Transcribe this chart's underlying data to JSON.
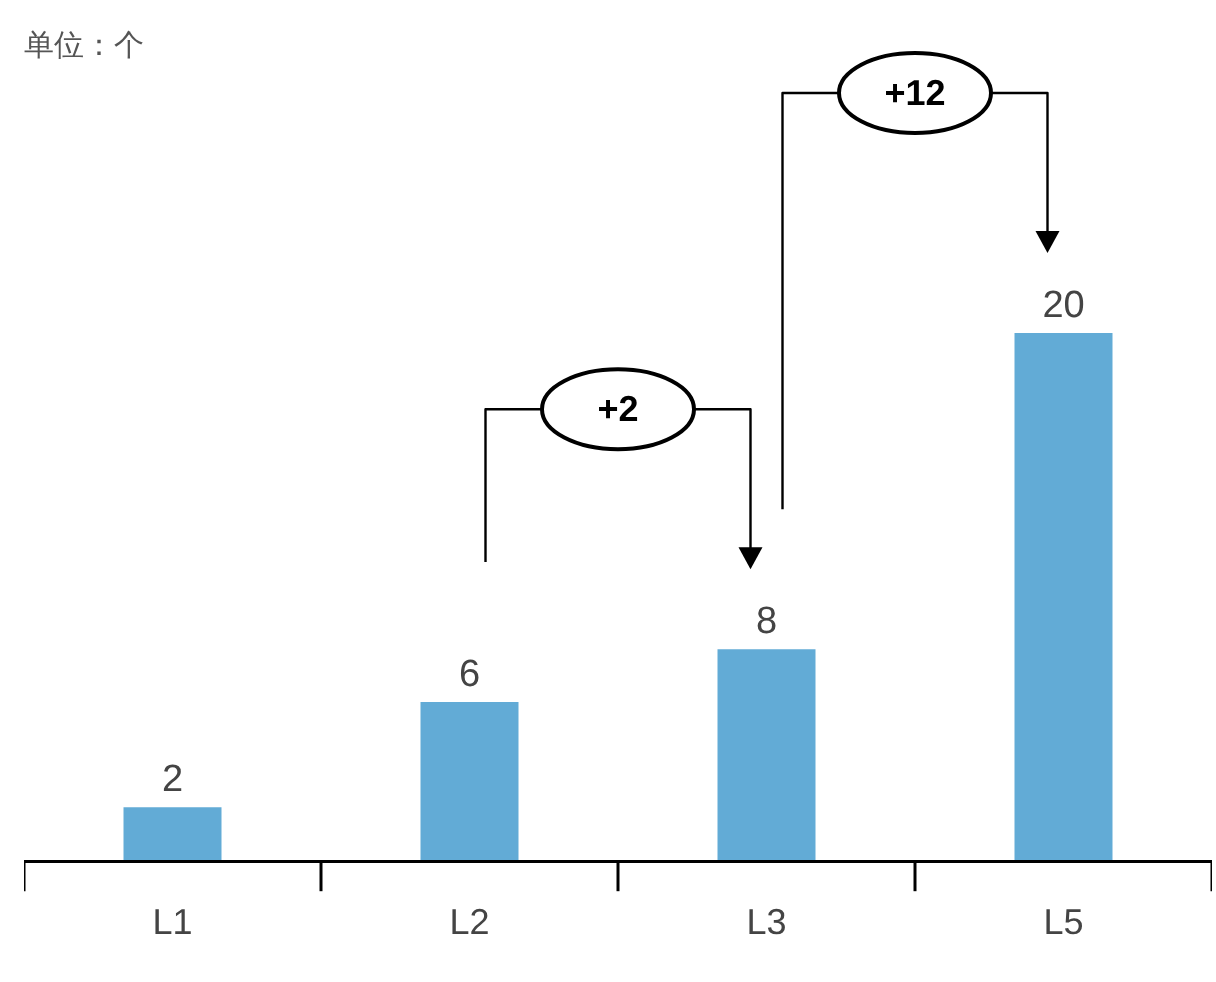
{
  "chart_data": {
    "type": "bar",
    "title": "单位：个",
    "categories": [
      "L1",
      "L2",
      "L3",
      "L5"
    ],
    "values": [
      2,
      6,
      8,
      20
    ],
    "color": "#62abd6",
    "data_labels": true,
    "annotations": [
      "+2",
      "+12"
    ]
  }
}
